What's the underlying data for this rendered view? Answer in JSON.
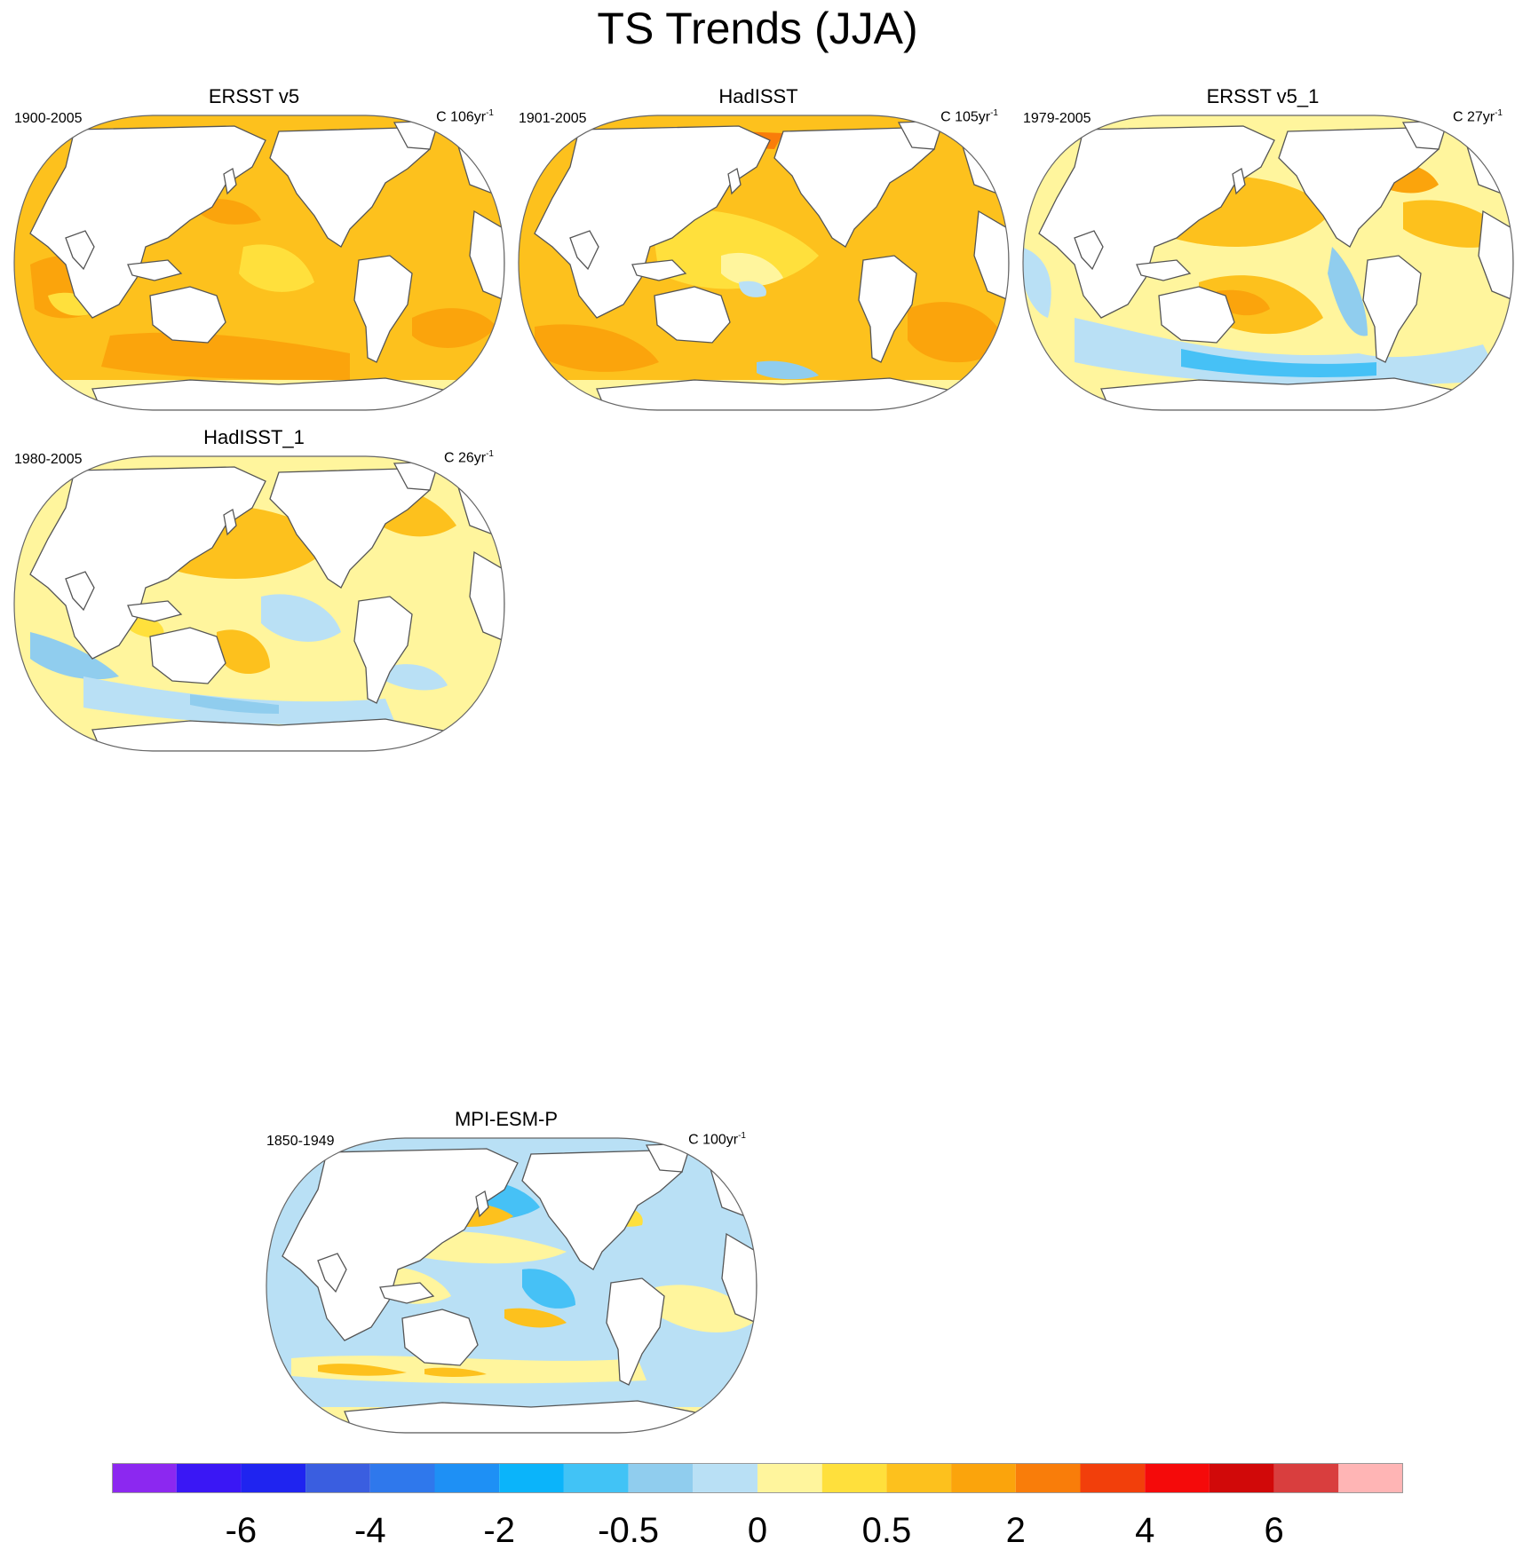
{
  "title": "TS Trends (JJA)",
  "palette": {
    "warm1": "#FFF59D",
    "warm2": "#FFE03C",
    "warm3": "#FDC11D",
    "warm4": "#FBA40C",
    "warm5": "#F97D0A",
    "warm6": "#F23F0B",
    "cool1": "#B9E0F5",
    "cool2": "#90CDEE",
    "cool3": "#46C1F6",
    "cool4": "#15B5FC",
    "land": "#FFFFFF",
    "coast": "#555555",
    "border": "#666666"
  },
  "panels": [
    {
      "id": "ersst-v5",
      "title": "ERSST v5",
      "period": "1900-2005",
      "units_base": "C 106yr",
      "units_sup": "-1",
      "pattern": "warm"
    },
    {
      "id": "hadisst",
      "title": "HadISST",
      "period": "1901-2005",
      "units_base": "C 105yr",
      "units_sup": "-1",
      "pattern": "warm-speckled"
    },
    {
      "id": "ersst-v5-1",
      "title": "ERSST v5_1",
      "period": "1979-2005",
      "units_base": "C 27yr",
      "units_sup": "-1",
      "pattern": "mixed"
    },
    {
      "id": "hadisst-1",
      "title": "HadISST_1",
      "period": "1980-2005",
      "units_base": "C 26yr",
      "units_sup": "-1",
      "pattern": "mixed-speckled"
    },
    {
      "id": "mpi-esm-p",
      "title": "MPI-ESM-P",
      "period": "1850-1949",
      "units_base": "C 100yr",
      "units_sup": "-1",
      "pattern": "cool"
    }
  ],
  "colorbar": {
    "colors": [
      "#8C28F0",
      "#3A17F5",
      "#1F24F0",
      "#3A5EE0",
      "#2F78EC",
      "#1E90F5",
      "#0BB4FA",
      "#41C3F6",
      "#90CDEE",
      "#B9E0F5",
      "#FFF59D",
      "#FFE03C",
      "#FDC11D",
      "#FBA40C",
      "#F97D0A",
      "#F23F0B",
      "#F50A0A",
      "#D10909",
      "#D93E3E",
      "#FFB5B5"
    ],
    "labels": [
      "-6",
      "-4",
      "-2",
      "-0.5",
      "0",
      "0.5",
      "2",
      "4",
      "6"
    ]
  }
}
